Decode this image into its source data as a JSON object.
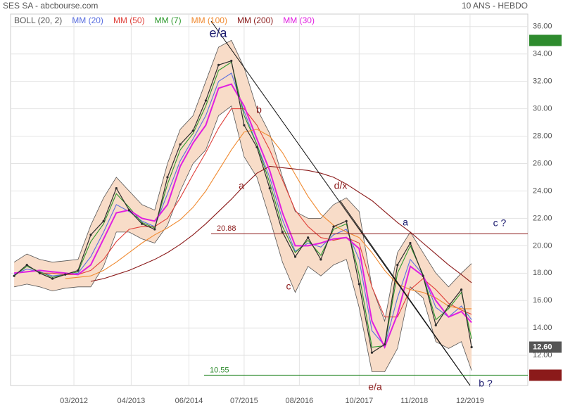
{
  "chart_data": {
    "type": "line",
    "title": "SES SA - abcbourse.com",
    "subtitle": "10 ANS - HEBDO",
    "x": [
      2011.0,
      2011.25,
      2011.5,
      2011.75,
      2012.0,
      2012.25,
      2012.5,
      2012.75,
      2013.0,
      2013.25,
      2013.5,
      2013.75,
      2014.0,
      2014.25,
      2014.5,
      2014.75,
      2015.0,
      2015.25,
      2015.5,
      2015.75,
      2016.0,
      2016.25,
      2016.5,
      2016.75,
      2017.0,
      2017.25,
      2017.5,
      2017.75,
      2018.0,
      2018.25,
      2018.5,
      2018.75,
      2019.0,
      2019.25,
      2019.5,
      2019.75,
      2019.95
    ],
    "xlim": [
      2010.93,
      2021.05
    ],
    "xticks": [
      {
        "value": 2012.17,
        "label": "03/2012"
      },
      {
        "value": 2013.29,
        "label": "04/2013"
      },
      {
        "value": 2014.42,
        "label": "06/2014"
      },
      {
        "value": 2015.5,
        "label": "07/2015"
      },
      {
        "value": 2016.58,
        "label": "08/2016"
      },
      {
        "value": 2017.75,
        "label": "10/2017"
      },
      {
        "value": 2018.83,
        "label": "11/2018"
      },
      {
        "value": 2019.92,
        "label": "12/2019"
      }
    ],
    "ylim": [
      9.8,
      36.4
    ],
    "yticks": [
      {
        "value": 12,
        "label": "12.00"
      },
      {
        "value": 14,
        "label": "14.00"
      },
      {
        "value": 16,
        "label": "16.00"
      },
      {
        "value": 18,
        "label": "18.00"
      },
      {
        "value": 20,
        "label": "20.00"
      },
      {
        "value": 22,
        "label": "22.00"
      },
      {
        "value": 24,
        "label": "24.00"
      },
      {
        "value": 26,
        "label": "26.00"
      },
      {
        "value": 28,
        "label": "28.00"
      },
      {
        "value": 30,
        "label": "30.00"
      },
      {
        "value": 32,
        "label": "32.00"
      },
      {
        "value": 34,
        "label": "34.00"
      },
      {
        "value": 36,
        "label": "36.00"
      }
    ],
    "grid": true,
    "band": {
      "name": "BOLL (20, 2)",
      "color": "#555555",
      "fill": "#f8dcc8",
      "upper": [
        18.8,
        19.4,
        19.0,
        18.8,
        18.9,
        19.0,
        21.5,
        23.5,
        25.0,
        24.0,
        23.0,
        22.6,
        26.0,
        28.5,
        29.5,
        32.0,
        34.5,
        35.0,
        33.0,
        30.0,
        28.2,
        25.0,
        22.5,
        22.0,
        22.0,
        23.0,
        23.5,
        22.5,
        17.0,
        14.5,
        19.5,
        21.0,
        19.5,
        18.0,
        17.0,
        18.0,
        18.7
      ],
      "lower": [
        17.0,
        17.2,
        17.0,
        16.7,
        16.9,
        17.0,
        17.0,
        18.5,
        21.0,
        21.0,
        20.5,
        20.2,
        21.5,
        24.0,
        26.0,
        27.0,
        29.5,
        30.2,
        26.5,
        25.0,
        22.0,
        18.8,
        16.6,
        18.5,
        17.8,
        18.6,
        19.0,
        15.5,
        10.8,
        10.8,
        12.5,
        17.0,
        16.2,
        13.0,
        12.5,
        13.0,
        10.9
      ]
    },
    "price": {
      "color": "#2e2e2e",
      "values": [
        17.8,
        18.6,
        18.0,
        17.6,
        17.9,
        18.2,
        20.8,
        21.8,
        24.2,
        22.6,
        21.6,
        21.2,
        25.0,
        27.4,
        28.4,
        30.6,
        33.2,
        33.5,
        28.8,
        27.2,
        24.2,
        21.0,
        19.2,
        20.6,
        19.0,
        21.4,
        21.8,
        17.2,
        12.2,
        12.8,
        18.6,
        20.2,
        17.8,
        14.2,
        15.6,
        16.8,
        12.6
      ]
    },
    "series": [
      {
        "name": "MM (20)",
        "color": "#5a6fe0",
        "values": [
          17.9,
          18.3,
          18.1,
          17.8,
          17.9,
          18.0,
          19.2,
          21.0,
          23.0,
          22.5,
          21.8,
          21.4,
          23.8,
          26.2,
          27.8,
          29.5,
          32.0,
          32.6,
          29.8,
          27.4,
          25.0,
          21.9,
          19.6,
          20.2,
          19.9,
          20.8,
          21.2,
          19.0,
          13.8,
          12.7,
          16.2,
          19.0,
          17.9,
          15.5,
          14.8,
          15.6,
          14.6
        ]
      },
      {
        "name": "MM (50)",
        "color": "#e0403a",
        "values": [
          null,
          null,
          18.0,
          18.0,
          17.9,
          17.9,
          18.2,
          19.0,
          20.3,
          21.2,
          21.4,
          21.4,
          22.0,
          23.5,
          25.2,
          26.8,
          28.6,
          30.0,
          30.0,
          28.8,
          27.0,
          24.8,
          22.6,
          21.4,
          20.6,
          20.4,
          20.6,
          20.2,
          17.0,
          14.8,
          14.8,
          16.8,
          17.6,
          16.8,
          15.8,
          15.3,
          15.0
        ]
      },
      {
        "name": "MM (7)",
        "color": "#2e9a2e",
        "values": [
          17.8,
          18.5,
          18.1,
          17.7,
          17.9,
          18.1,
          20.3,
          21.6,
          23.8,
          22.8,
          21.7,
          21.3,
          24.5,
          27.0,
          28.2,
          30.2,
          32.8,
          33.4,
          29.5,
          27.4,
          24.6,
          21.4,
          19.5,
          20.4,
          19.3,
          21.2,
          21.6,
          17.9,
          12.6,
          12.7,
          18.0,
          20.0,
          17.9,
          14.6,
          15.4,
          16.6,
          13.2
        ]
      },
      {
        "name": "MM (100)",
        "color": "#f08a30",
        "values": [
          null,
          null,
          null,
          null,
          17.6,
          17.7,
          17.8,
          18.2,
          18.8,
          19.5,
          20.2,
          20.8,
          21.3,
          21.9,
          22.8,
          24.0,
          25.5,
          27.0,
          28.3,
          28.5,
          28.0,
          26.8,
          25.2,
          23.6,
          22.3,
          21.5,
          21.0,
          20.6,
          19.5,
          18.2,
          17.2,
          16.8,
          16.6,
          16.2,
          15.6,
          15.4,
          15.4
        ]
      },
      {
        "name": "MM (200)",
        "color": "#8b1a1a",
        "values": [
          null,
          null,
          null,
          null,
          null,
          null,
          17.4,
          17.6,
          17.9,
          18.2,
          18.6,
          19.0,
          19.5,
          20.1,
          20.8,
          21.6,
          22.5,
          23.4,
          24.4,
          25.3,
          25.8,
          25.7,
          25.6,
          25.5,
          25.3,
          25.0,
          24.5,
          23.9,
          23.3,
          22.5,
          21.7,
          21.0,
          20.2,
          19.4,
          18.6,
          17.9,
          17.3
        ]
      },
      {
        "name": "MM (30)",
        "color": "#e020e0",
        "values": [
          18.0,
          18.1,
          18.2,
          18.1,
          18.0,
          17.9,
          18.6,
          20.5,
          22.4,
          22.6,
          22.0,
          21.8,
          23.0,
          25.8,
          27.5,
          28.8,
          31.5,
          31.8,
          30.2,
          27.8,
          25.5,
          22.4,
          20.0,
          20.0,
          20.2,
          20.5,
          20.6,
          19.8,
          14.5,
          12.6,
          15.0,
          18.5,
          17.8,
          16.0,
          14.8,
          15.2,
          14.4
        ]
      }
    ],
    "levels": [
      {
        "value": 20.88,
        "color": "#8b1a1a"
      },
      {
        "value": 10.55,
        "color": "#2e8b2e"
      }
    ],
    "price_tags": [
      {
        "value": 34.99,
        "color": "#2e8b2e"
      },
      {
        "value": 12.6,
        "label": "12.60",
        "color": "#555555"
      },
      {
        "value": 10.55,
        "color": "#8b1a1a"
      }
    ],
    "annotations": [
      {
        "text": "e/a",
        "color": "#1a1a6e"
      },
      {
        "text": "b",
        "color": "#8b1a1a"
      },
      {
        "text": "a",
        "color": "#8b1a1a"
      },
      {
        "text": "d/x",
        "color": "#8b1a1a"
      },
      {
        "text": "c",
        "color": "#8b1a1a"
      },
      {
        "text": "a",
        "color": "#1a1a6e"
      },
      {
        "text": "c ?",
        "color": "#1a1a6e"
      },
      {
        "text": "e/a",
        "color": "#8b1a1a"
      },
      {
        "text": "b ?",
        "color": "#1a1a6e"
      }
    ]
  }
}
